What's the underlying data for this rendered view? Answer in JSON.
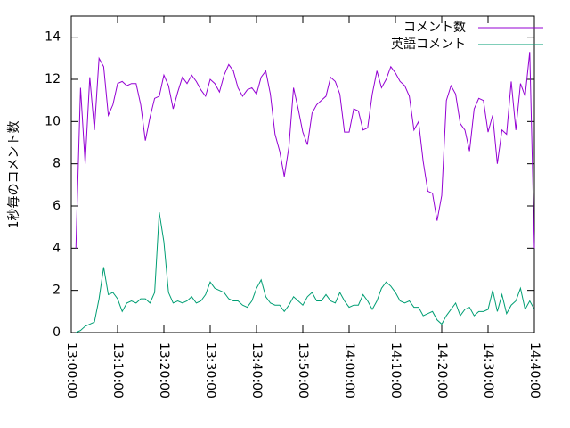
{
  "chart_data": {
    "type": "line",
    "y_label": "1秒毎のコメント数",
    "x": [
      "13:01:00",
      "13:02:00",
      "13:03:00",
      "13:04:00",
      "13:05:00",
      "13:06:00",
      "13:07:00",
      "13:08:00",
      "13:09:00",
      "13:10:00",
      "13:11:00",
      "13:12:00",
      "13:13:00",
      "13:14:00",
      "13:15:00",
      "13:16:00",
      "13:17:00",
      "13:18:00",
      "13:19:00",
      "13:20:00",
      "13:21:00",
      "13:22:00",
      "13:23:00",
      "13:24:00",
      "13:25:00",
      "13:26:00",
      "13:27:00",
      "13:28:00",
      "13:29:00",
      "13:30:00",
      "13:31:00",
      "13:32:00",
      "13:33:00",
      "13:34:00",
      "13:35:00",
      "13:36:00",
      "13:37:00",
      "13:38:00",
      "13:39:00",
      "13:40:00",
      "13:41:00",
      "13:42:00",
      "13:43:00",
      "13:44:00",
      "13:45:00",
      "13:46:00",
      "13:47:00",
      "13:48:00",
      "13:49:00",
      "13:50:00",
      "13:51:00",
      "13:52:00",
      "13:53:00",
      "13:54:00",
      "13:55:00",
      "13:56:00",
      "13:57:00",
      "13:58:00",
      "13:59:00",
      "14:00:00",
      "14:01:00",
      "14:02:00",
      "14:03:00",
      "14:04:00",
      "14:05:00",
      "14:06:00",
      "14:07:00",
      "14:08:00",
      "14:09:00",
      "14:10:00",
      "14:11:00",
      "14:12:00",
      "14:13:00",
      "14:14:00",
      "14:15:00",
      "14:16:00",
      "14:17:00",
      "14:18:00",
      "14:19:00",
      "14:20:00",
      "14:21:00",
      "14:22:00",
      "14:23:00",
      "14:24:00",
      "14:25:00",
      "14:26:00",
      "14:27:00",
      "14:28:00",
      "14:29:00",
      "14:30:00",
      "14:31:00",
      "14:32:00",
      "14:33:00",
      "14:34:00",
      "14:35:00",
      "14:36:00",
      "14:37:00",
      "14:38:00",
      "14:39:00",
      "14:40:00"
    ],
    "series": [
      {
        "name": "コメント数",
        "color": "#9400d3",
        "values": [
          4.0,
          11.6,
          8.0,
          12.1,
          9.6,
          13.0,
          12.6,
          10.3,
          10.8,
          11.8,
          11.9,
          11.7,
          11.8,
          11.8,
          10.8,
          9.1,
          10.2,
          11.1,
          11.2,
          12.2,
          11.7,
          10.6,
          11.4,
          12.1,
          11.8,
          12.2,
          11.9,
          11.5,
          11.2,
          12.0,
          11.8,
          11.4,
          12.2,
          12.7,
          12.4,
          11.6,
          11.2,
          11.5,
          11.6,
          11.3,
          12.1,
          12.4,
          11.3,
          9.4,
          8.6,
          7.4,
          8.8,
          11.6,
          10.6,
          9.5,
          8.9,
          10.4,
          10.8,
          11.0,
          11.2,
          12.1,
          11.9,
          11.3,
          9.5,
          9.5,
          10.6,
          10.5,
          9.6,
          9.7,
          11.3,
          12.4,
          11.6,
          12.0,
          12.6,
          12.3,
          11.9,
          11.7,
          11.2,
          9.6,
          10.0,
          8.1,
          6.7,
          6.6,
          5.3,
          6.5,
          11.0,
          11.7,
          11.3,
          9.9,
          9.6,
          8.6,
          10.6,
          11.1,
          11.0,
          9.5,
          10.3,
          8.0,
          9.6,
          9.4,
          11.9,
          9.6,
          11.8,
          11.2,
          13.3,
          4.0
        ]
      },
      {
        "name": "英語コメント",
        "color": "#009e73",
        "values": [
          0.0,
          0.1,
          0.3,
          0.4,
          0.5,
          1.6,
          3.1,
          1.8,
          1.9,
          1.6,
          1.0,
          1.4,
          1.5,
          1.4,
          1.6,
          1.6,
          1.4,
          1.9,
          5.7,
          4.3,
          1.9,
          1.4,
          1.5,
          1.4,
          1.5,
          1.7,
          1.4,
          1.5,
          1.8,
          2.4,
          2.1,
          2.0,
          1.9,
          1.6,
          1.5,
          1.5,
          1.3,
          1.2,
          1.5,
          2.1,
          2.5,
          1.7,
          1.4,
          1.3,
          1.3,
          1.0,
          1.3,
          1.7,
          1.5,
          1.3,
          1.7,
          1.9,
          1.5,
          1.5,
          1.8,
          1.5,
          1.4,
          1.9,
          1.5,
          1.2,
          1.3,
          1.3,
          1.8,
          1.5,
          1.1,
          1.5,
          2.1,
          2.4,
          2.2,
          1.9,
          1.5,
          1.4,
          1.5,
          1.2,
          1.2,
          0.8,
          0.9,
          1.0,
          0.6,
          0.4,
          0.8,
          1.1,
          1.4,
          0.8,
          1.1,
          1.2,
          0.8,
          1.0,
          1.0,
          1.1,
          2.0,
          1.0,
          1.8,
          0.9,
          1.3,
          1.5,
          2.1,
          1.1,
          1.5,
          1.1
        ]
      }
    ],
    "xlim": [
      "13:00:00",
      "14:40:00"
    ],
    "xticks": [
      "13:00:00",
      "13:10:00",
      "13:20:00",
      "13:30:00",
      "13:40:00",
      "13:50:00",
      "14:00:00",
      "14:10:00",
      "14:20:00",
      "14:30:00",
      "14:40:00"
    ],
    "ylim": [
      0,
      15
    ],
    "yticks": [
      0,
      2,
      4,
      6,
      8,
      10,
      12,
      14
    ],
    "legend": "top right"
  }
}
